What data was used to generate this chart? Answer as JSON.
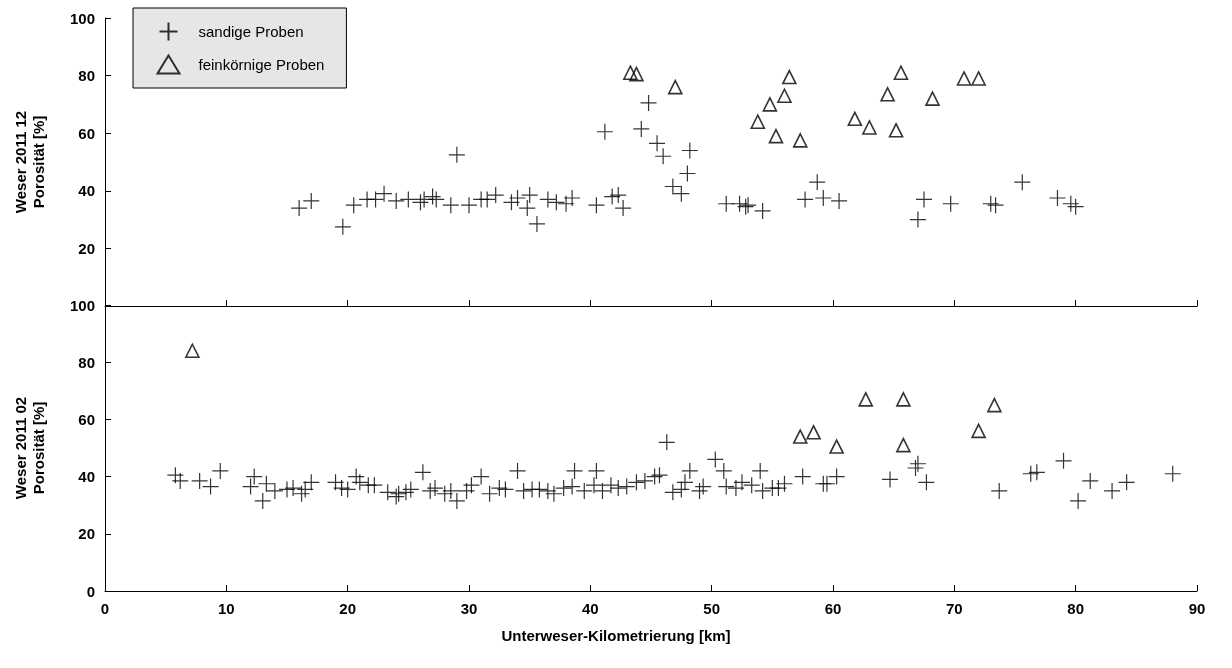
{
  "chart_data": [
    {
      "type": "scatter",
      "ylabel": "Weser 2011 12\nPorosität [%]",
      "xlim": [
        0,
        90
      ],
      "xticks": [
        0,
        10,
        20,
        30,
        40,
        50,
        60,
        70,
        80,
        90
      ],
      "ylim": [
        0,
        100
      ],
      "yticks": [
        {
          "value": 0,
          "label": null
        },
        20,
        40,
        60,
        80,
        100
      ],
      "tick_labels": "y",
      "grid": false,
      "legend": "top left",
      "series": [
        {
          "name": "sandige Proben",
          "color": "#000000",
          "marker": "cross",
          "x": [
            16,
            17,
            19.6,
            20.5,
            21.6,
            22.3,
            23,
            24,
            25,
            26,
            26.3,
            27,
            27.3,
            28.5,
            29,
            30,
            31,
            31.5,
            32.2,
            33.5,
            34,
            35,
            34.8,
            35.6,
            36.5,
            37.2,
            38,
            38.5,
            40.5,
            41.2,
            41.8,
            42.3,
            42.7,
            44.2,
            44.8,
            45.5,
            46,
            46.8,
            47.5,
            48,
            48.2,
            51.2,
            52.3,
            52.8,
            53,
            54.2,
            57.7,
            58.7,
            59.2,
            60.5,
            67,
            67.5,
            69.7,
            73,
            73.4,
            75.6,
            78.5,
            79.6,
            80
          ],
          "values": [
            34,
            36.5,
            27.5,
            35,
            37,
            37,
            39,
            36.5,
            37,
            36,
            37,
            38,
            37,
            35,
            52.5,
            35,
            37,
            37,
            38.5,
            36,
            37.5,
            38.5,
            34,
            28.5,
            37,
            36,
            35.5,
            37.5,
            35,
            60.5,
            38,
            38.5,
            34,
            61.5,
            70.5,
            56.5,
            52,
            41.5,
            39,
            46,
            54,
            35.5,
            35.5,
            34.5,
            35,
            33,
            37,
            43,
            37.5,
            36.5,
            30,
            37,
            35.5,
            35.5,
            35,
            43,
            37.5,
            35.5,
            34.5
          ]
        },
        {
          "name": "feinkörnige Proben",
          "color": "#000000",
          "marker": "triangle",
          "x": [
            43.3,
            43.8,
            47,
            53.8,
            54.8,
            55.3,
            56,
            56.4,
            57.3,
            61.8,
            63,
            64.5,
            65.2,
            65.6,
            68.2,
            70.8,
            72
          ],
          "values": [
            81,
            80.5,
            76,
            64,
            70,
            59,
            73,
            79.5,
            57.5,
            65,
            62,
            73.5,
            61,
            81,
            72,
            79,
            79
          ]
        }
      ]
    },
    {
      "type": "scatter",
      "xlabel": "Unterweser-Kilometrierung [km]",
      "ylabel": "Weser 2011 02\nPorosität [%]",
      "xlim": [
        0,
        90
      ],
      "xticks": [
        0,
        10,
        20,
        30,
        40,
        50,
        60,
        70,
        80,
        90
      ],
      "ylim": [
        0,
        100
      ],
      "yticks": [
        0,
        20,
        40,
        60,
        80,
        100
      ],
      "grid": false,
      "series": [
        {
          "color": "#000000",
          "marker": "cross",
          "x": [
            5.8,
            6.2,
            7.8,
            8.7,
            9.5,
            12,
            12.3,
            13,
            13.3,
            14,
            15,
            15.5,
            16.2,
            16.5,
            17,
            19,
            19.5,
            20,
            20.7,
            21,
            21.7,
            22.2,
            23.3,
            24,
            24.2,
            24.8,
            25.2,
            26.2,
            26.8,
            27.2,
            28,
            28.5,
            29,
            29.8,
            30.2,
            31,
            31.7,
            32.5,
            33,
            34,
            34.5,
            35.2,
            35.8,
            36.5,
            37,
            37.8,
            38.7,
            38.5,
            39.5,
            40.3,
            40.5,
            41,
            41.7,
            42.3,
            43,
            43.8,
            44.5,
            45.3,
            45.7,
            46.3,
            46.8,
            47.5,
            47.8,
            48.2,
            49,
            49.3,
            50.3,
            51,
            51.2,
            52,
            52.5,
            53.3,
            54,
            54.2,
            55,
            55.5,
            56,
            57.5,
            59.2,
            59.5,
            60.3,
            64.7,
            66.8,
            67,
            67.7,
            73.7,
            76.3,
            76.8,
            79,
            80.2,
            81.2,
            83,
            84.2,
            88
          ],
          "values": [
            40.5,
            38.5,
            38.5,
            36.5,
            42,
            36.5,
            40,
            31.5,
            37.5,
            35,
            35.5,
            36,
            34,
            35.5,
            38,
            38,
            36,
            35.5,
            40,
            38,
            37,
            37,
            34.5,
            33,
            34,
            34.5,
            35.5,
            41.5,
            35,
            36,
            34,
            35,
            31.5,
            35,
            37,
            40,
            34,
            36,
            35.5,
            42,
            35,
            35.5,
            35.5,
            35,
            34,
            36,
            42,
            36.5,
            35,
            37,
            42,
            35,
            37,
            36,
            36.5,
            38,
            38.5,
            40,
            40.5,
            52,
            34.5,
            35.5,
            38,
            42,
            35,
            36.5,
            46,
            42,
            36.5,
            36,
            38,
            37,
            42,
            35,
            36,
            36,
            37.5,
            40,
            37.5,
            37.5,
            40,
            39,
            43,
            44.5,
            38,
            35,
            41,
            41.5,
            45.5,
            31.5,
            38.5,
            35,
            38,
            41
          ]
        },
        {
          "color": "#000000",
          "marker": "triangle",
          "x": [
            7.2,
            57.3,
            58.4,
            60.3,
            62.7,
            65.8,
            65.8,
            72,
            73.3
          ],
          "values": [
            84,
            54,
            55.5,
            50.5,
            67,
            67,
            51,
            56,
            65
          ]
        }
      ]
    }
  ]
}
